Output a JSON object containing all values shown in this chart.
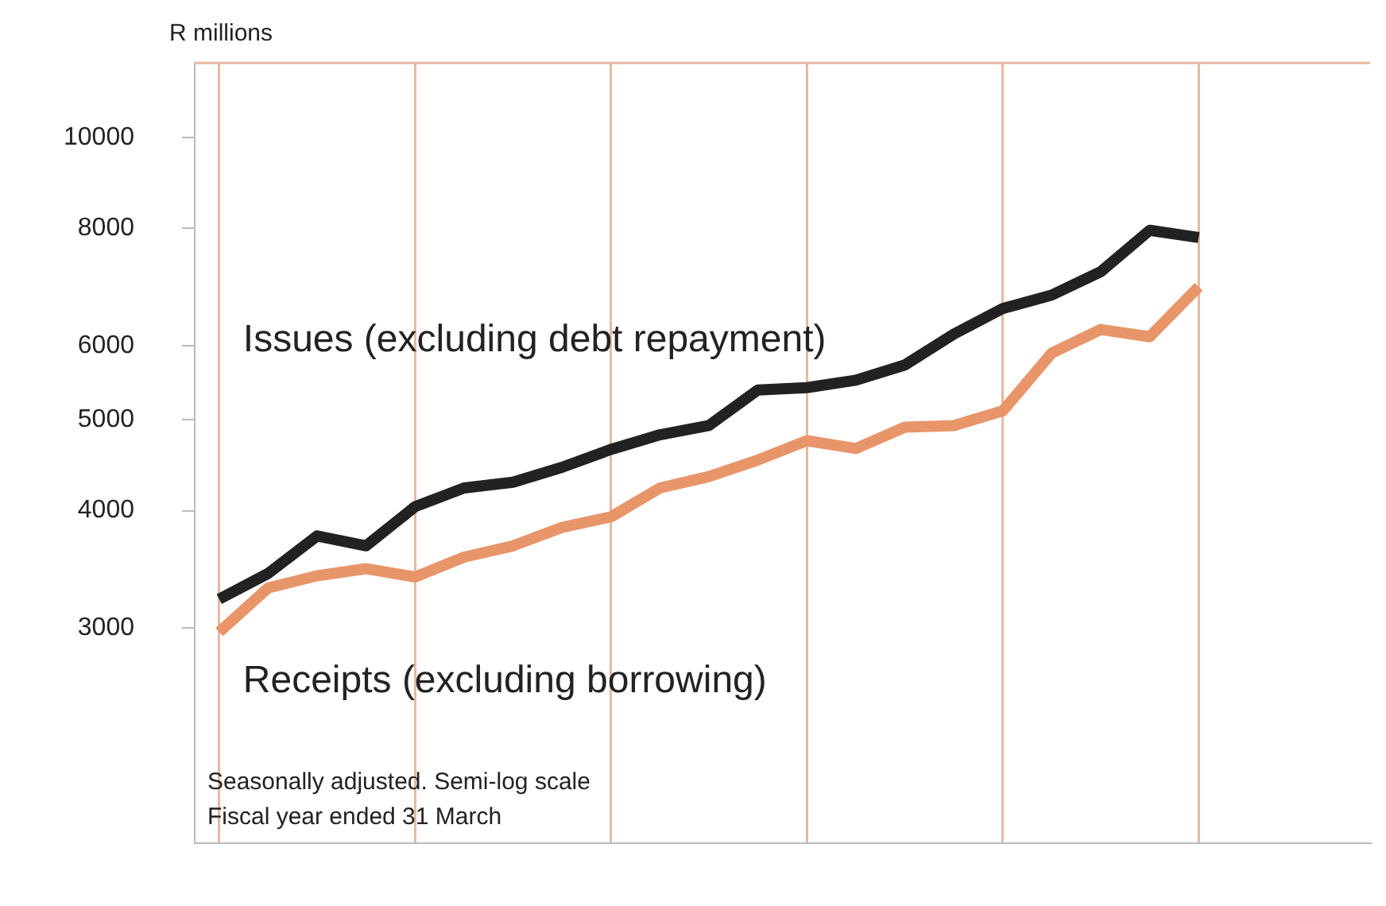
{
  "chart_data": {
    "type": "line",
    "ylabel": "R millions",
    "log": "y",
    "grid": "x",
    "legend": false,
    "tick_labels": "y",
    "marker": "none",
    "line_style": "solid",
    "categories": [
      null,
      null,
      null,
      null,
      null,
      null,
      null,
      null,
      null,
      null,
      null,
      null,
      null,
      null,
      null,
      null,
      null,
      null,
      null,
      null,
      null,
      null,
      null,
      null
    ],
    "ylim": [
      1770,
      12000
    ],
    "yticks": [
      3000,
      4000,
      5000,
      6000,
      8000,
      10000
    ],
    "series": [
      {
        "name": "Issues (excluding debt repayment)",
        "color": "#222222",
        "values": [
          3220,
          3430,
          3760,
          3670,
          4040,
          4230,
          4290,
          4450,
          4650,
          4820,
          4930,
          5380,
          5410,
          5510,
          5720,
          6170,
          6570,
          6790,
          7190,
          7960,
          7820,
          null,
          null,
          null
        ]
      },
      {
        "name": "Receipts (excluding borrowing)",
        "color": "#e8956a",
        "values": [
          2970,
          3310,
          3410,
          3470,
          3400,
          3570,
          3670,
          3840,
          3940,
          4230,
          4350,
          4530,
          4750,
          4660,
          4910,
          4930,
          5110,
          5890,
          6240,
          6130,
          6930,
          null,
          null,
          null
        ]
      }
    ],
    "annotations": [
      "Seasonally adjusted. Semi-log scale",
      "Fiscal year ended 31 March"
    ]
  }
}
